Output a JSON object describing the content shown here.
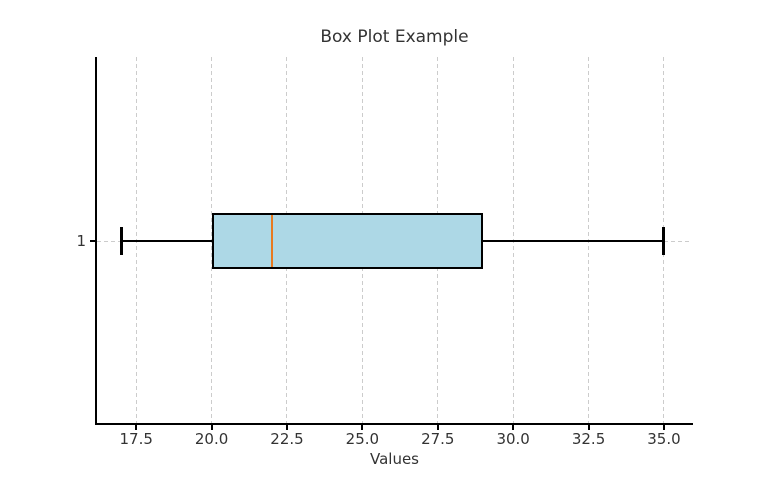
{
  "chart_data": {
    "type": "boxplot",
    "orientation": "horizontal",
    "title": "Box Plot Example",
    "xlabel": "Values",
    "ylabel": "",
    "series": [
      {
        "label": "1",
        "whisker_low": 17,
        "q1": 20,
        "median": 22,
        "q3": 29,
        "whisker_high": 35,
        "outliers": []
      }
    ],
    "x_ticks": [
      17.5,
      20.0,
      22.5,
      25.0,
      27.5,
      30.0,
      32.5,
      35.0
    ],
    "x_tick_labels": [
      "17.5",
      "20.0",
      "22.5",
      "25.0",
      "27.5",
      "30.0",
      "32.5",
      "35.0"
    ],
    "y_ticks": [
      1
    ],
    "y_tick_labels": [
      "1"
    ],
    "xlim": [
      16.2,
      35.93
    ],
    "grid": true,
    "grid_style": "dashed",
    "legend": false,
    "colors": {
      "box_fill": "#add8e6",
      "box_edge": "#000000",
      "median": "#e87a20",
      "whisker": "#000000",
      "cap": "#000000",
      "grid": "#cccccc",
      "spine": "#000000",
      "text": "#333333"
    }
  }
}
